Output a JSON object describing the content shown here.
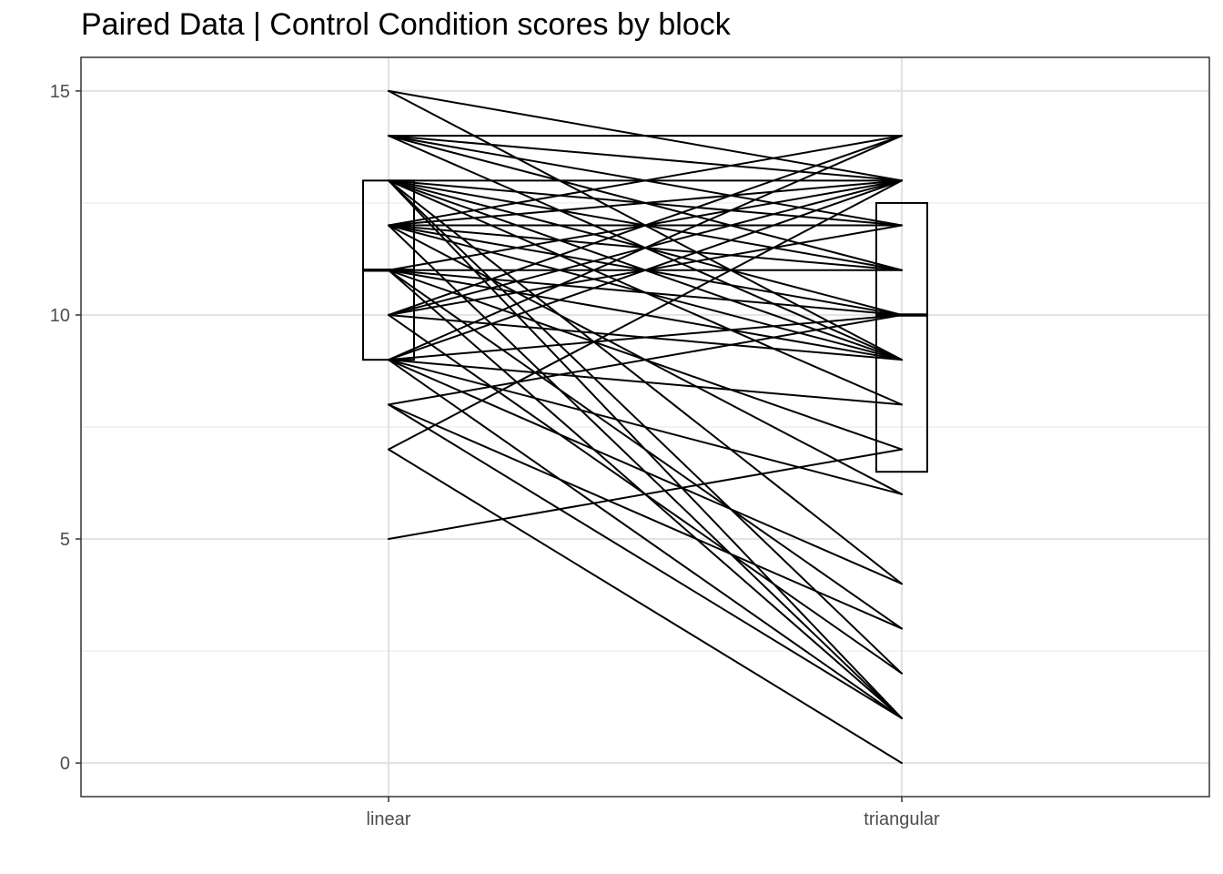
{
  "chart_data": {
    "type": "line",
    "title": "Paired Data | Control Condition scores by block",
    "xlabel": "",
    "ylabel": "",
    "categories": [
      "linear",
      "triangular"
    ],
    "ylim": [
      -0.75,
      15.75
    ],
    "yticks": [
      0,
      5,
      10,
      15
    ],
    "grid": true,
    "line_color": "#000000",
    "boxplots": [
      {
        "category": "linear",
        "q1": 9,
        "median": 11,
        "q3": 13
      },
      {
        "category": "triangular",
        "q1": 6.5,
        "median": 10,
        "q3": 12.5
      }
    ],
    "pairs": [
      [
        15,
        13
      ],
      [
        15,
        9
      ],
      [
        14,
        14
      ],
      [
        14,
        13
      ],
      [
        14,
        12
      ],
      [
        14,
        11
      ],
      [
        14,
        9
      ],
      [
        13,
        13
      ],
      [
        13,
        12
      ],
      [
        13,
        11
      ],
      [
        13,
        10
      ],
      [
        13,
        9
      ],
      [
        13,
        8
      ],
      [
        13,
        4
      ],
      [
        13,
        2
      ],
      [
        13,
        1
      ],
      [
        12,
        14
      ],
      [
        12,
        13
      ],
      [
        12,
        12
      ],
      [
        12,
        11
      ],
      [
        12,
        10
      ],
      [
        12,
        9
      ],
      [
        12,
        6
      ],
      [
        12,
        1
      ],
      [
        11,
        13
      ],
      [
        11,
        11
      ],
      [
        11,
        10
      ],
      [
        11,
        9
      ],
      [
        11,
        7
      ],
      [
        11,
        3
      ],
      [
        11,
        1
      ],
      [
        10,
        14
      ],
      [
        10,
        13
      ],
      [
        10,
        12
      ],
      [
        10,
        9
      ],
      [
        10,
        2
      ],
      [
        9,
        14
      ],
      [
        9,
        13
      ],
      [
        9,
        10
      ],
      [
        9,
        8
      ],
      [
        9,
        6
      ],
      [
        9,
        4
      ],
      [
        9,
        1
      ],
      [
        8,
        10
      ],
      [
        8,
        3
      ],
      [
        8,
        1
      ],
      [
        7,
        13
      ],
      [
        7,
        0
      ],
      [
        5,
        7
      ]
    ]
  }
}
